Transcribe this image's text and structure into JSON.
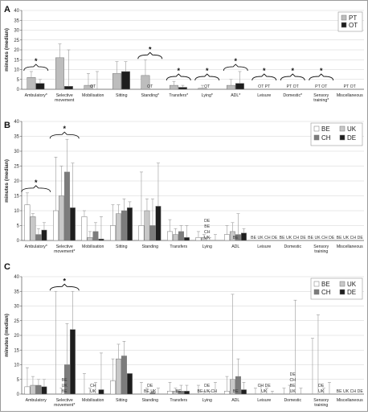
{
  "panels": [
    {
      "panel_label": "A",
      "chart_data": {
        "type": "bar",
        "ylabel": "minutes (median)",
        "ylim": [
          0,
          40
        ],
        "yticks": [
          0,
          5,
          10,
          15,
          20,
          25,
          30,
          35,
          40
        ],
        "grid": true,
        "legend_position": "top-right",
        "categories": [
          "Ambulatory*",
          "Selective movement",
          "Mobilisation",
          "Sitting",
          "Standing*",
          "Transfers*",
          "Lying*",
          "ADL*",
          "Leisure",
          "Domestic*",
          "Sensory training*",
          "Miscellaneous"
        ],
        "series": [
          {
            "name": "PT",
            "color": "#bdbdbd",
            "values": [
              6,
              16,
              2,
              8,
              7,
              2,
              0.5,
              2,
              0,
              0,
              0,
              0
            ],
            "upper": [
              9,
              23,
              8,
              14,
              15,
              4,
              2,
              5,
              0,
              0,
              0,
              0
            ]
          },
          {
            "name": "OT",
            "color": "#1e1e1e",
            "values": [
              3,
              1.5,
              0,
              9,
              0,
              1,
              0,
              3,
              0,
              0,
              0,
              0
            ],
            "upper": [
              5,
              20,
              9,
              14,
              0,
              2,
              0,
              9,
              0,
              0,
              0,
              0
            ]
          }
        ],
        "value_annotations": [
          {
            "category": "Mobilisation",
            "text": "OT"
          },
          {
            "category": "Standing*",
            "text": "OT"
          },
          {
            "category": "Lying*",
            "text": "OT"
          },
          {
            "category": "Leisure",
            "text": "OT  PT"
          },
          {
            "category": "Domestic*",
            "text": "PT  OT"
          },
          {
            "category": "Sensory training*",
            "text": "PT  OT"
          },
          {
            "category": "Miscellaneous",
            "text": "PT  OT"
          }
        ],
        "significance": [
          {
            "category": "Ambulatory*",
            "mark": "*"
          },
          {
            "category": "Standing*",
            "mark": "*"
          },
          {
            "category": "Transfers*",
            "mark": "*"
          },
          {
            "category": "Lying*",
            "mark": "*"
          },
          {
            "category": "ADL*",
            "mark": "*"
          },
          {
            "category": "Leisure",
            "mark": "*"
          },
          {
            "category": "Domestic*",
            "mark": "*"
          },
          {
            "category": "Sensory training*",
            "mark": "*"
          }
        ]
      }
    },
    {
      "panel_label": "B",
      "chart_data": {
        "type": "bar",
        "ylabel": "minutes (median)",
        "ylim": [
          0,
          40
        ],
        "yticks": [
          0,
          5,
          10,
          15,
          20,
          25,
          30,
          35,
          40
        ],
        "grid": true,
        "legend_position": "top-right",
        "categories": [
          "Ambulatory*",
          "Selective movement*",
          "Mobilisation",
          "Sitting",
          "Standing",
          "Transfers",
          "Lying",
          "ADL",
          "Leisure",
          "Domestic",
          "Sensory training",
          "Miscellaneous"
        ],
        "series": [
          {
            "name": "BE",
            "color": "#ffffff",
            "values": [
              12,
              10,
              8,
              5,
              5,
              3,
              1,
              2,
              0,
              0,
              0,
              0
            ],
            "upper": [
              16,
              28,
              10,
              12,
              23,
              7,
              3,
              5,
              0,
              0,
              0,
              0
            ]
          },
          {
            "name": "UK",
            "color": "#c8c8c8",
            "values": [
              8,
              15,
              1,
              9,
              10,
              2,
              1,
              3,
              0,
              0,
              0,
              0
            ],
            "upper": [
              9,
              25,
              3,
              12,
              14,
              4,
              2,
              6,
              0,
              0,
              0,
              0
            ]
          },
          {
            "name": "CH",
            "color": "#7c7c7c",
            "values": [
              2,
              23,
              3,
              10,
              5,
              3,
              0,
              2,
              0,
              0,
              0,
              0
            ],
            "upper": [
              4,
              34,
              6,
              14,
              14,
              5,
              1,
              9,
              0,
              0,
              0,
              0
            ]
          },
          {
            "name": "DE",
            "color": "#1e1e1e",
            "values": [
              3.5,
              11,
              0.5,
              11,
              11.5,
              1,
              0,
              2.5,
              0,
              0,
              0,
              0
            ],
            "upper": [
              6,
              26,
              8,
              13,
              26,
              5,
              2,
              4,
              0,
              0,
              0,
              0
            ]
          }
        ],
        "value_annotations": [
          {
            "category": "Lying",
            "text": "UK"
          },
          {
            "category": "Lying",
            "text": "CH"
          },
          {
            "category": "Lying",
            "text": "BE"
          },
          {
            "category": "Lying",
            "text": "DE"
          },
          {
            "category": "ADL",
            "text": "BE"
          },
          {
            "category": "Leisure",
            "text": "BE UK CH DE"
          },
          {
            "category": "Domestic",
            "text": "BE UK CH DE"
          },
          {
            "category": "Sensory training",
            "text": "BE UK CH DE"
          },
          {
            "category": "Miscellaneous",
            "text": "BE UK CH DE"
          }
        ],
        "significance": [
          {
            "category": "Ambulatory*",
            "mark": "*"
          },
          {
            "category": "Selective movement*",
            "mark": "*"
          }
        ]
      }
    },
    {
      "panel_label": "C",
      "chart_data": {
        "type": "bar",
        "ylabel": "minutes (median)",
        "ylim": [
          0,
          40
        ],
        "yticks": [
          0,
          5,
          10,
          15,
          20,
          25,
          30,
          35,
          40
        ],
        "grid": true,
        "legend_position": "top-right",
        "categories": [
          "Ambulatory",
          "Selective movement*",
          "Mobilisation",
          "Sitting",
          "Standing",
          "Transfers",
          "Lying",
          "ADL",
          "Leisure",
          "Domestic",
          "Sensory training",
          "Miscellaneous"
        ],
        "series": [
          {
            "name": "BE",
            "color": "#ffffff",
            "values": [
              2.5,
              0,
              0,
              4.5,
              0,
              1,
              0,
              1,
              0,
              0,
              0,
              0
            ],
            "upper": [
              9,
              35,
              7,
              12,
              4,
              4,
              3,
              6,
              2,
              2,
              19,
              0
            ]
          },
          {
            "name": "UK",
            "color": "#c8c8c8",
            "values": [
              3,
              0,
              0,
              12,
              0,
              1,
              0,
              5,
              0,
              0,
              0,
              0
            ],
            "upper": [
              6,
              2,
              2,
              17,
              2,
              2,
              1,
              34,
              3,
              3,
              27,
              0
            ]
          },
          {
            "name": "CH",
            "color": "#7c7c7c",
            "values": [
              3,
              10,
              0,
              13,
              0.5,
              1,
              0,
              6,
              0,
              0,
              0,
              0
            ],
            "upper": [
              5,
              24,
              4,
              18,
              1,
              3,
              1,
              12,
              2,
              32,
              2,
              0
            ]
          },
          {
            "name": "DE",
            "color": "#1e1e1e",
            "values": [
              2.5,
              22,
              1.5,
              7,
              0,
              1,
              0,
              1.5,
              0,
              0,
              0,
              0
            ],
            "upper": [
              5,
              35,
              14,
              7,
              2,
              3,
              4,
              4,
              1,
              2,
              4,
              0
            ]
          }
        ],
        "value_annotations": [
          {
            "category": "Selective movement*",
            "text": "BE"
          },
          {
            "category": "Selective movement*",
            "text": "UK"
          },
          {
            "category": "Selective movement*",
            "text": "BE"
          },
          {
            "category": "Mobilisation",
            "text": "UK"
          },
          {
            "category": "Mobilisation",
            "text": "CH"
          },
          {
            "category": "Standing",
            "text": "BE UK"
          },
          {
            "category": "Standing",
            "text": "DE"
          },
          {
            "category": "Transfers",
            "text": "BE"
          },
          {
            "category": "Lying",
            "text": "BE UK CH"
          },
          {
            "category": "Lying",
            "text": "DE"
          },
          {
            "category": "ADL",
            "text": "BE"
          },
          {
            "category": "Leisure",
            "text": "UK"
          },
          {
            "category": "Leisure",
            "text": "CH DE"
          },
          {
            "category": "Domestic",
            "text": "UK"
          },
          {
            "category": "Domestic",
            "text": "BE"
          },
          {
            "category": "Domestic",
            "text": "CH"
          },
          {
            "category": "Domestic",
            "text": "DE"
          },
          {
            "category": "Sensory training",
            "text": "UK"
          },
          {
            "category": "Sensory training",
            "text": "DE"
          },
          {
            "category": "Miscellaneous",
            "text": "BE UK CH DE"
          }
        ],
        "significance": [
          {
            "category": "Selective movement*",
            "mark": "*"
          }
        ]
      }
    }
  ]
}
